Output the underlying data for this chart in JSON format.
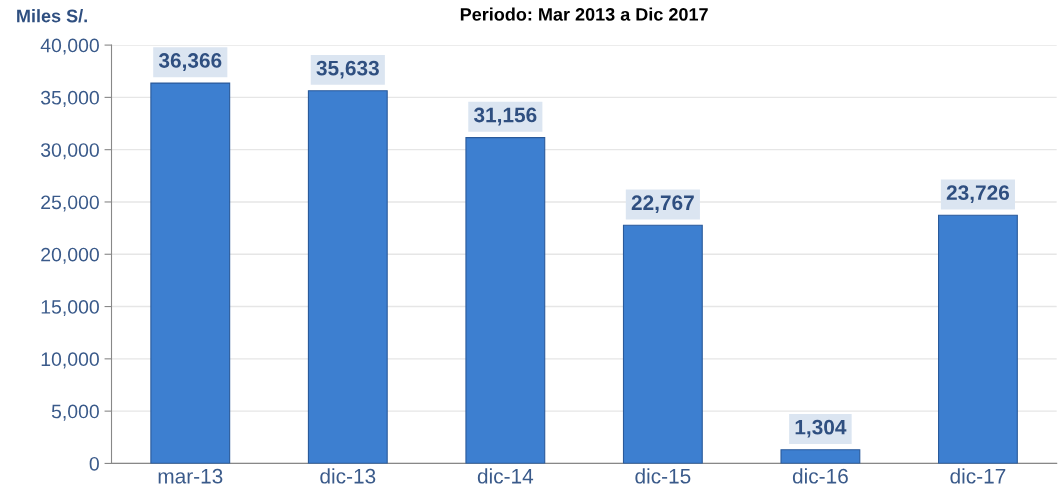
{
  "chart_data": {
    "type": "bar",
    "title": "Periodo: Mar 2013 a Dic 2017",
    "ylabel": "Miles S/.",
    "categories": [
      "mar-13",
      "dic-13",
      "dic-14",
      "dic-15",
      "dic-16",
      "dic-17"
    ],
    "values": [
      36366,
      35633,
      31156,
      22767,
      1304,
      23726
    ],
    "color": "#3d7fd0",
    "value_labels": [
      "36,366",
      "35,633",
      "31,156",
      "22,767",
      "1,304",
      "23,726"
    ],
    "ylim": [
      0,
      40000
    ],
    "yticks": [
      {
        "value": 0,
        "label": "0"
      },
      {
        "value": 5000,
        "label": "5,000"
      },
      {
        "value": 10000,
        "label": "10,000"
      },
      {
        "value": 15000,
        "label": "15,000"
      },
      {
        "value": 20000,
        "label": "20,000"
      },
      {
        "value": 25000,
        "label": "25,000"
      },
      {
        "value": 30000,
        "label": "30,000"
      },
      {
        "value": 35000,
        "label": "35,000"
      },
      {
        "value": 40000,
        "label": "40,000"
      }
    ],
    "grid": "y",
    "legend": false
  }
}
